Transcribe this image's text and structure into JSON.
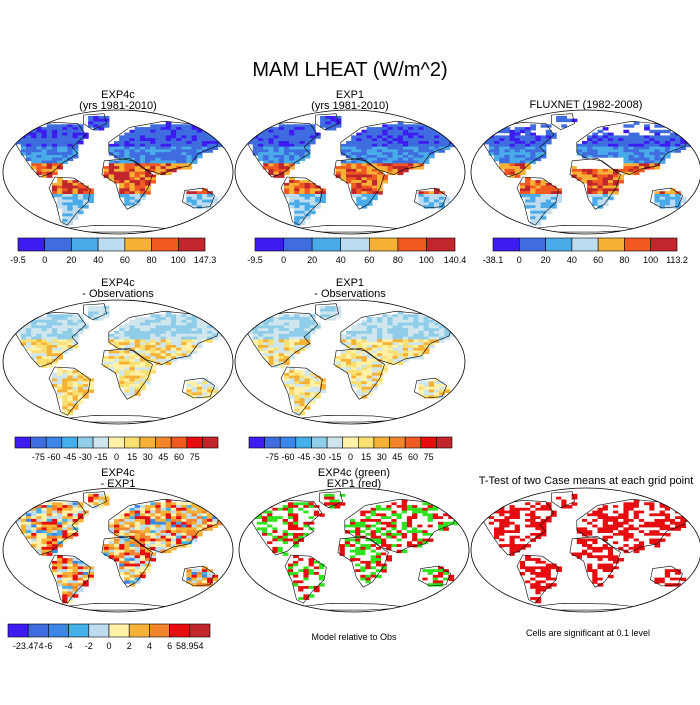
{
  "title": "MAM LHEAT (W/m^2)",
  "footer": {
    "left": "Model relative to Obs",
    "right": "Cells are significant at 0.1 level"
  },
  "colors": {
    "ramp_abs": [
      "#3d1cf2",
      "#3f6ddf",
      "#4aabe9",
      "#bddcef",
      "#f6b236",
      "#f05a22",
      "#c0262b"
    ],
    "ramp_diff": [
      "#3d1cf2",
      "#3f6ddf",
      "#3d86e7",
      "#44b0ea",
      "#90cde9",
      "#cfe6ef",
      "#fff2a8",
      "#f9df70",
      "#f6b236",
      "#f3862c",
      "#f05a22",
      "#e60d10",
      "#c0262b"
    ],
    "ramp_13": [
      "#3d1cf2",
      "#3f6ddf",
      "#3d86e7",
      "#44b0ea",
      "#bddcef",
      "#fff2a8",
      "#f6b236",
      "#f3862c",
      "#e60d10",
      "#c0262b"
    ],
    "land_base": "#ffffff",
    "green": "#2ee31e",
    "red": "#e60d10"
  },
  "chart_data": [
    {
      "type": "heatmap",
      "panel": "exp4c",
      "title_lines": [
        "EXP4c",
        "(yrs 1981-2010)"
      ],
      "colorbar": {
        "labels": [
          "-9.5",
          "0",
          "20",
          "40",
          "60",
          "80",
          "100",
          "147.3"
        ],
        "ramp": "ramp_abs"
      }
    },
    {
      "type": "heatmap",
      "panel": "exp1",
      "title_lines": [
        "EXP1",
        "(yrs 1981-2010)"
      ],
      "colorbar": {
        "labels": [
          "-9.5",
          "0",
          "20",
          "40",
          "60",
          "80",
          "100",
          "140.4"
        ],
        "ramp": "ramp_abs"
      }
    },
    {
      "type": "heatmap",
      "panel": "fluxnet",
      "title_lines": [
        "FLUXNET (1982-2008)"
      ],
      "colorbar": {
        "labels": [
          "-38.1",
          "0",
          "20",
          "40",
          "60",
          "80",
          "100",
          "113.2"
        ],
        "ramp": "ramp_abs"
      }
    },
    {
      "type": "heatmap",
      "panel": "exp4c_obs",
      "title_lines": [
        "EXP4c",
        "- Observations"
      ],
      "colorbar": {
        "labels": [
          "-75",
          "-60",
          "-45",
          "-30",
          "-15",
          "0",
          "15",
          "30",
          "45",
          "60",
          "75"
        ],
        "ramp": "ramp_diff"
      }
    },
    {
      "type": "heatmap",
      "panel": "exp1_obs",
      "title_lines": [
        "EXP1",
        "- Observations"
      ],
      "colorbar": {
        "labels": [
          "-75",
          "-60",
          "-45",
          "-30",
          "-15",
          "0",
          "15",
          "30",
          "45",
          "60",
          "75"
        ],
        "ramp": "ramp_diff"
      }
    },
    {
      "type": "heatmap",
      "panel": "exp4c_exp1",
      "title_lines": [
        "EXP4c",
        "- EXP1"
      ],
      "colorbar": {
        "labels": [
          "-23.474",
          "-6",
          "-4",
          "-2",
          "0",
          "2",
          "4",
          "6",
          "58.954"
        ],
        "ramp": "ramp_13"
      }
    },
    {
      "type": "heatmap",
      "panel": "green_red",
      "title_lines": [
        "EXP4c (green)",
        "EXP1 (red)"
      ]
    },
    {
      "type": "heatmap",
      "panel": "ttest",
      "title_lines": [
        "T-Test of two Case means at each grid point"
      ]
    }
  ]
}
